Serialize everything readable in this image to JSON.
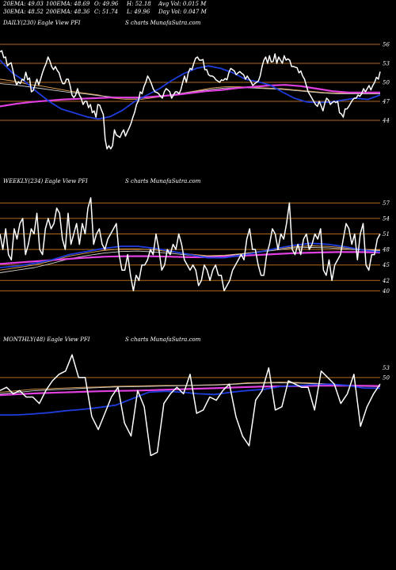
{
  "header": {
    "stats": [
      "20EMA: 49.03",
      "100EMA: 48.69",
      "O: 49.96",
      "H: 52.18",
      "Avg Vol: 0.015 M",
      "30EMA: 48.52",
      "200EMA: 48.36",
      "C: 51.74",
      "L: 49.96",
      "Day Vol: 0.047 M"
    ]
  },
  "panels": [
    {
      "label_left": "DAILY(230) Eagle  View  PFI",
      "label_right": "S charts MunafaSutra.com"
    },
    {
      "label_left": "WEEKLY(234) Eagle  View  PFI",
      "label_right": "S charts MunafaSutra.com"
    },
    {
      "label_left": "MONTHLY(48) Eagle  View  PFI",
      "label_right": "S charts MunafaSutra.com"
    }
  ],
  "colors": {
    "background": "#000000",
    "price": "#ffffff",
    "ema_short": "#1e3ddc",
    "ema_mid": "#e0a050",
    "ema_mid2": "#cfcfcf",
    "ema_long": "#e040e0",
    "level": "#b06a1e"
  },
  "chart_data": [
    {
      "type": "line",
      "title": "DAILY(230) Eagle View PFI",
      "y_ticks": [
        56,
        53,
        50,
        47,
        44
      ],
      "ylim": [
        38,
        58
      ],
      "levels": [
        56,
        53,
        50,
        47,
        44
      ],
      "series": [
        {
          "role": "price",
          "values": [
            54.8,
            55,
            53.9,
            54,
            52.6,
            52.9,
            53.1,
            51.9,
            50.5,
            49.6,
            50.1,
            49.8,
            50.5,
            50.3,
            51.6,
            50.4,
            50.7,
            48.5,
            48.7,
            49.6,
            50.5,
            49.6,
            50.5,
            51.5,
            52.3,
            53,
            54,
            53.4,
            52.5,
            52,
            52.5,
            51.9,
            51.5,
            50.5,
            49.8,
            49.8,
            50.5,
            50.5,
            49.5,
            48,
            47.6,
            48,
            49,
            48,
            47.5,
            46.5,
            47,
            47,
            46,
            46.5,
            45.2,
            45.5,
            44.5,
            46.5,
            46.4,
            45.6,
            44.9,
            41,
            39.5,
            40,
            39.5,
            40,
            42.5,
            41.7,
            41.5,
            41.3,
            42,
            42.5,
            41.5,
            42.2,
            42.8,
            43.5,
            44.5,
            45.3,
            46.5,
            47.1,
            48.5,
            48.2,
            49.3,
            50,
            51,
            50.5,
            49.8,
            49,
            48.5,
            48.4,
            48.2,
            47.8,
            47.5,
            48.5,
            49,
            48.8,
            48.5,
            47.5,
            48,
            48.5,
            48.5,
            48.2,
            48.8,
            50,
            51,
            50,
            51.5,
            52.2,
            52,
            53,
            53.8,
            54,
            53.5,
            53.5,
            53.6,
            52,
            52,
            51.2,
            51,
            51,
            50.8,
            50.4,
            50.2,
            50,
            50.4,
            50.3,
            50.6,
            50.4,
            51.5,
            52.2,
            52,
            51.8,
            51.2,
            51.5,
            51.7,
            51.4,
            51.2,
            50.5,
            51,
            50.5,
            50.1,
            49.5,
            49.8,
            50,
            50.2,
            51,
            52.5,
            53.5,
            54,
            53,
            54.2,
            53.2,
            53.3,
            54.5,
            53,
            54,
            53.5,
            53,
            54.2,
            53.5,
            53.7,
            53.5,
            52.5,
            52.5,
            52.4,
            52.3,
            51.5,
            51.8,
            51,
            50.5,
            49.5,
            48.5,
            48,
            47.5,
            47,
            46.5,
            46.2,
            47,
            46.3,
            45.5,
            46.7,
            47.5,
            47.2,
            46.5,
            46.8,
            47,
            46.8,
            47,
            45.2,
            45,
            44.5,
            45.8,
            45.8,
            46.2,
            46.7,
            47.2,
            47.5,
            47.5,
            48,
            47.8,
            48.2,
            49,
            48.5,
            49,
            49.5,
            48.8,
            49.5,
            50,
            50.8,
            50.5,
            51.7
          ]
        },
        {
          "role": "ema_short",
          "values": [
            53.5,
            51.5,
            50.2,
            48.5,
            47,
            45.8,
            45.2,
            44.6,
            44.2,
            44.6,
            45.6,
            47,
            48,
            49,
            50.3,
            51.4,
            52.2,
            52.6,
            52.2,
            51.5,
            50.5,
            50.1,
            49.6,
            48.5,
            47.5,
            46.9,
            46.8,
            46.9,
            47.2,
            47.5,
            47.3,
            48
          ]
        },
        {
          "role": "ema_mid",
          "values": [
            50.5,
            50.2,
            49.7,
            49.4,
            49,
            48.6,
            48.3,
            48,
            47.5,
            47.3,
            47.3,
            47.6,
            47.9,
            48.3,
            48.7,
            49.1,
            49.3,
            49.3,
            49.2,
            49.1,
            49,
            48.8,
            48.6,
            48.4,
            48.3,
            48.3,
            48.2,
            48.2
          ]
        },
        {
          "role": "ema_mid2",
          "values": [
            49.8,
            49.6,
            49.3,
            49,
            48.7,
            48.4,
            48.2,
            47.9,
            47.7,
            47.5,
            47.5,
            47.7,
            48,
            48.3,
            48.6,
            48.9,
            49.1,
            49.2,
            49.1,
            49,
            48.9,
            48.7,
            48.5,
            48.3,
            48.2,
            48.2,
            48.2,
            48.2
          ]
        },
        {
          "role": "ema_long",
          "values": [
            46.2,
            46.6,
            46.9,
            47.1,
            47.3,
            47.4,
            47.5,
            47.6,
            47.6,
            47.6,
            47.8,
            48,
            48.3,
            48.6,
            48.8,
            49.1,
            49.3,
            49.5,
            49.6,
            49.4,
            49,
            48.6,
            48.4,
            48.4,
            48.4
          ]
        }
      ]
    },
    {
      "type": "line",
      "title": "WEEKLY(234) Eagle View PFI",
      "y_ticks": [
        57,
        54,
        51,
        48,
        45,
        42,
        40
      ],
      "ylim": [
        35,
        59.5
      ],
      "levels": [
        57,
        54,
        51,
        48,
        45,
        42,
        40
      ],
      "series": [
        {
          "role": "price",
          "values": [
            51,
            48,
            52,
            47,
            46,
            52,
            50,
            53,
            54,
            47,
            49,
            52,
            51,
            55,
            48,
            47,
            52,
            54,
            52,
            53,
            56,
            55,
            50,
            48,
            55,
            49,
            51,
            53,
            49,
            53,
            51,
            56,
            58,
            49,
            51,
            52,
            49,
            48,
            50,
            51,
            52,
            53,
            47,
            44,
            44,
            47,
            43,
            40,
            43,
            42,
            45,
            45,
            46,
            48,
            47,
            51,
            48,
            44,
            45,
            48,
            47,
            49,
            48,
            51,
            49,
            46,
            45,
            44,
            45,
            44,
            41,
            42,
            45,
            44,
            42,
            44,
            45,
            43,
            43,
            40,
            41,
            42,
            44,
            45,
            46,
            47,
            46,
            50,
            52,
            48,
            48,
            45,
            43,
            43,
            47,
            49,
            52,
            51,
            48,
            51,
            50,
            53,
            57,
            48,
            47,
            49,
            47,
            50,
            51,
            48,
            49,
            51,
            50,
            52,
            44,
            43,
            46,
            42,
            45,
            46,
            47,
            50,
            53,
            52,
            49,
            51,
            46,
            51,
            53,
            45,
            44,
            47,
            47,
            50,
            51
          ]
        },
        {
          "role": "ema_short",
          "values": [
            44.5,
            44.8,
            45.3,
            46,
            47,
            47.6,
            48.2,
            48.6,
            48.6,
            48.2,
            47.6,
            47,
            46.4,
            46.4,
            46.9,
            47.5,
            48.2,
            48.8,
            49.2,
            49,
            48.5,
            47.9,
            47.5
          ]
        },
        {
          "role": "ema_mid",
          "values": [
            44,
            44.5,
            45,
            45.8,
            46.7,
            47.3,
            47.8,
            48.1,
            48.1,
            47.9,
            47.5,
            47.1,
            46.8,
            46.9,
            47.2,
            47.6,
            48.1,
            48.5,
            48.7,
            48.6,
            48.3,
            48,
            47.9
          ]
        },
        {
          "role": "ema_mid2",
          "values": [
            43.5,
            44,
            44.5,
            45.3,
            46.2,
            46.8,
            47.3,
            47.6,
            47.7,
            47.5,
            47.2,
            46.9,
            46.7,
            46.8,
            47.1,
            47.5,
            47.9,
            48.3,
            48.4,
            48.3,
            48.1,
            47.9,
            47.8
          ]
        },
        {
          "role": "ema_long",
          "values": [
            45.2,
            45.5,
            45.8,
            46.1,
            46.4,
            46.6,
            46.7,
            46.7,
            46.6,
            46.5,
            46.5,
            46.7,
            46.9,
            47.1,
            47.3,
            47.4,
            47.5,
            47.5,
            47.4
          ]
        }
      ]
    },
    {
      "type": "line",
      "title": "MONTHLY(48) Eagle View PFI",
      "y_ticks": [
        53,
        50
      ],
      "ylim": [
        20,
        59
      ],
      "levels": [
        50
      ],
      "series": [
        {
          "role": "price",
          "values": [
            46,
            47,
            45,
            46,
            44,
            44,
            42,
            46,
            49,
            51,
            52,
            57,
            50,
            50,
            38,
            34,
            39,
            44,
            47,
            36,
            32,
            46,
            41,
            26,
            27,
            42,
            45,
            47,
            45,
            51,
            39,
            40,
            44,
            43,
            46,
            48,
            38,
            32,
            29,
            43,
            46,
            53,
            40,
            41,
            49,
            48,
            47,
            47,
            40,
            52,
            50,
            48,
            42,
            45,
            51,
            35,
            41,
            45,
            48
          ]
        },
        {
          "role": "ema_short",
          "values": [
            38.5,
            38.5,
            38.8,
            39.2,
            39.8,
            40.2,
            40.8,
            41.5,
            43.5,
            45.5,
            45.8,
            45.5,
            45,
            44.8,
            45.5,
            46,
            46.4,
            47.3,
            47.5,
            47.8,
            48,
            47.6,
            46.8,
            46.7
          ]
        },
        {
          "role": "ema_mid",
          "values": [
            45.5,
            45.9,
            46.4,
            46.6,
            46.8,
            47,
            47.1,
            47.3,
            47.4,
            47.5,
            47.6,
            47.6,
            47.7,
            47.8,
            48,
            48.4,
            48.5,
            48.6,
            48.5,
            48.3,
            48,
            47.7,
            47.4,
            47.3
          ]
        },
        {
          "role": "ema_mid2",
          "values": [
            45,
            45.4,
            45.9,
            46.2,
            46.4,
            46.7,
            46.9,
            47.1,
            47.2,
            47.3,
            47.4,
            47.5,
            47.6,
            47.7,
            47.9,
            48.2,
            48.3,
            48.4,
            48.3,
            48.1,
            47.9,
            47.6,
            47.3,
            47.2
          ]
        },
        {
          "role": "ema_long",
          "values": [
            44.6,
            44.9,
            45.2,
            45.4,
            45.6,
            45.8,
            45.9,
            46,
            46.2,
            46.4,
            46.6,
            46.8,
            47,
            47.2,
            47.3,
            47.4,
            47.5,
            47.5,
            47.5,
            47.4
          ]
        }
      ]
    }
  ]
}
